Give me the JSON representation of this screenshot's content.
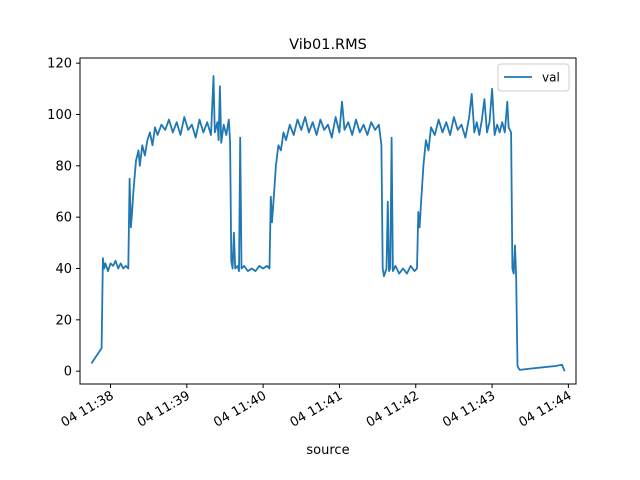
{
  "chart_data": {
    "type": "line",
    "title": "Vib01.RMS",
    "xlabel": "source",
    "ylabel": "",
    "x_range": [
      "04 11:37:36",
      "04 11:44:06"
    ],
    "ylim": [
      -5,
      122
    ],
    "y_ticks": [
      0,
      20,
      40,
      60,
      80,
      100,
      120
    ],
    "x_ticks": [
      "04 11:38",
      "04 11:39",
      "04 11:40",
      "04 11:41",
      "04 11:42",
      "04 11:43",
      "04 11:44"
    ],
    "grid": false,
    "legend": {
      "position": "top-right",
      "entries": [
        "val"
      ]
    },
    "series": [
      {
        "name": "val",
        "color": "#1f77b4",
        "points": [
          [
            "11:37:45",
            3
          ],
          [
            "11:37:53",
            9
          ],
          [
            "11:37:54",
            44
          ],
          [
            "11:37:55",
            40
          ],
          [
            "11:37:56",
            42
          ],
          [
            "11:37:58",
            39
          ],
          [
            "11:38:00",
            42
          ],
          [
            "11:38:02",
            41
          ],
          [
            "11:38:04",
            43
          ],
          [
            "11:38:06",
            40
          ],
          [
            "11:38:08",
            42
          ],
          [
            "11:38:10",
            40
          ],
          [
            "11:38:12",
            41
          ],
          [
            "11:38:14",
            40
          ],
          [
            "11:38:15",
            75
          ],
          [
            "11:38:16",
            56
          ],
          [
            "11:38:17",
            62
          ],
          [
            "11:38:18",
            70
          ],
          [
            "11:38:20",
            82
          ],
          [
            "11:38:22",
            86
          ],
          [
            "11:38:23",
            80
          ],
          [
            "11:38:25",
            88
          ],
          [
            "11:38:27",
            84
          ],
          [
            "11:38:29",
            90
          ],
          [
            "11:38:31",
            93
          ],
          [
            "11:38:33",
            88
          ],
          [
            "11:38:35",
            95
          ],
          [
            "11:38:37",
            92
          ],
          [
            "11:38:40",
            96
          ],
          [
            "11:38:43",
            94
          ],
          [
            "11:38:46",
            98
          ],
          [
            "11:38:49",
            93
          ],
          [
            "11:38:52",
            97
          ],
          [
            "11:38:55",
            92
          ],
          [
            "11:38:58",
            99
          ],
          [
            "11:39:01",
            94
          ],
          [
            "11:39:04",
            96
          ],
          [
            "11:39:07",
            91
          ],
          [
            "11:39:10",
            98
          ],
          [
            "11:39:13",
            93
          ],
          [
            "11:39:16",
            97
          ],
          [
            "11:39:19",
            92
          ],
          [
            "11:39:21",
            115
          ],
          [
            "11:39:22",
            93
          ],
          [
            "11:39:24",
            97
          ],
          [
            "11:39:25",
            90
          ],
          [
            "11:39:26",
            111
          ],
          [
            "11:39:27",
            89
          ],
          [
            "11:39:29",
            96
          ],
          [
            "11:39:31",
            92
          ],
          [
            "11:39:33",
            98
          ],
          [
            "11:39:34",
            89
          ],
          [
            "11:39:35",
            43
          ],
          [
            "11:39:36",
            40
          ],
          [
            "11:39:37",
            54
          ],
          [
            "11:39:38",
            40
          ],
          [
            "11:39:40",
            41
          ],
          [
            "11:39:41",
            39
          ],
          [
            "11:39:42",
            91
          ],
          [
            "11:39:43",
            40
          ],
          [
            "11:39:45",
            41
          ],
          [
            "11:39:48",
            39
          ],
          [
            "11:39:51",
            40
          ],
          [
            "11:39:54",
            39
          ],
          [
            "11:39:57",
            41
          ],
          [
            "11:40:00",
            40
          ],
          [
            "11:40:03",
            41
          ],
          [
            "11:40:05",
            40
          ],
          [
            "11:40:06",
            68
          ],
          [
            "11:40:07",
            58
          ],
          [
            "11:40:08",
            65
          ],
          [
            "11:40:10",
            80
          ],
          [
            "11:40:12",
            88
          ],
          [
            "11:40:14",
            86
          ],
          [
            "11:40:16",
            93
          ],
          [
            "11:40:18",
            90
          ],
          [
            "11:40:21",
            96
          ],
          [
            "11:40:24",
            92
          ],
          [
            "11:40:27",
            98
          ],
          [
            "11:40:30",
            94
          ],
          [
            "11:40:33",
            99
          ],
          [
            "11:40:36",
            93
          ],
          [
            "11:40:39",
            97
          ],
          [
            "11:40:42",
            92
          ],
          [
            "11:40:45",
            98
          ],
          [
            "11:40:48",
            94
          ],
          [
            "11:40:51",
            96
          ],
          [
            "11:40:54",
            91
          ],
          [
            "11:40:57",
            99
          ],
          [
            "11:41:00",
            93
          ],
          [
            "11:41:02",
            105
          ],
          [
            "11:41:04",
            94
          ],
          [
            "11:41:07",
            97
          ],
          [
            "11:41:10",
            92
          ],
          [
            "11:41:13",
            98
          ],
          [
            "11:41:16",
            93
          ],
          [
            "11:41:19",
            96
          ],
          [
            "11:41:22",
            92
          ],
          [
            "11:41:25",
            97
          ],
          [
            "11:41:28",
            94
          ],
          [
            "11:41:31",
            96
          ],
          [
            "11:41:33",
            88
          ],
          [
            "11:41:34",
            40
          ],
          [
            "11:41:35",
            37
          ],
          [
            "11:41:37",
            40
          ],
          [
            "11:41:38",
            66
          ],
          [
            "11:41:39",
            39
          ],
          [
            "11:41:40",
            40
          ],
          [
            "11:41:41",
            91
          ],
          [
            "11:41:42",
            39
          ],
          [
            "11:41:44",
            41
          ],
          [
            "11:41:47",
            38
          ],
          [
            "11:41:50",
            40
          ],
          [
            "11:41:53",
            38
          ],
          [
            "11:41:56",
            41
          ],
          [
            "11:41:59",
            39
          ],
          [
            "11:42:01",
            40
          ],
          [
            "11:42:02",
            62
          ],
          [
            "11:42:03",
            56
          ],
          [
            "11:42:04",
            64
          ],
          [
            "11:42:06",
            80
          ],
          [
            "11:42:08",
            90
          ],
          [
            "11:42:10",
            86
          ],
          [
            "11:42:12",
            95
          ],
          [
            "11:42:15",
            92
          ],
          [
            "11:42:18",
            98
          ],
          [
            "11:42:21",
            93
          ],
          [
            "11:42:24",
            97
          ],
          [
            "11:42:27",
            92
          ],
          [
            "11:42:30",
            99
          ],
          [
            "11:42:33",
            94
          ],
          [
            "11:42:36",
            96
          ],
          [
            "11:42:39",
            91
          ],
          [
            "11:42:42",
            99
          ],
          [
            "11:42:44",
            108
          ],
          [
            "11:42:46",
            93
          ],
          [
            "11:42:48",
            97
          ],
          [
            "11:42:50",
            92
          ],
          [
            "11:42:52",
            98
          ],
          [
            "11:42:54",
            106
          ],
          [
            "11:42:56",
            93
          ],
          [
            "11:42:58",
            97
          ],
          [
            "11:43:00",
            110
          ],
          [
            "11:43:02",
            92
          ],
          [
            "11:43:04",
            96
          ],
          [
            "11:43:06",
            93
          ],
          [
            "11:43:08",
            97
          ],
          [
            "11:43:10",
            93
          ],
          [
            "11:43:12",
            105
          ],
          [
            "11:43:13",
            95
          ],
          [
            "11:43:15",
            93
          ],
          [
            "11:43:16",
            40
          ],
          [
            "11:43:17",
            38
          ],
          [
            "11:43:18",
            49
          ],
          [
            "11:43:19",
            36
          ],
          [
            "11:43:20",
            2
          ],
          [
            "11:43:21",
            1
          ],
          [
            "11:43:22",
            0.5
          ],
          [
            "11:43:30",
            1
          ],
          [
            "11:43:40",
            1.5
          ],
          [
            "11:43:50",
            2
          ],
          [
            "11:43:55",
            2.5
          ],
          [
            "11:43:57",
            0
          ]
        ]
      }
    ]
  }
}
